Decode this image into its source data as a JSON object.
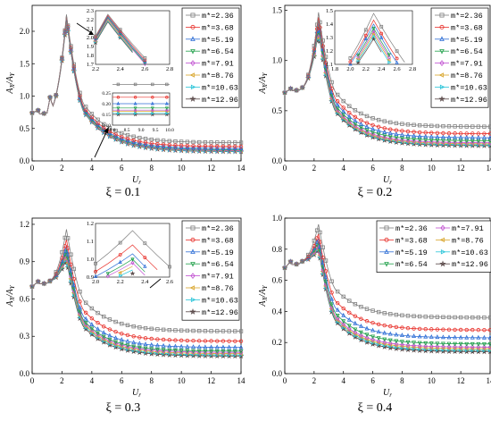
{
  "legend_names": [
    "m*=2.36",
    "m*=3.68",
    "m*=5.19",
    "m*=6.54",
    "m*=7.91",
    "m*=8.76",
    "m*=10.63",
    "m*=12.96"
  ],
  "series_colors": [
    "#808080",
    "#e8312b",
    "#2f6fd6",
    "#20a04a",
    "#c04fd0",
    "#d9a52b",
    "#28c4d8",
    "#554444"
  ],
  "series_markers": [
    "square",
    "circle",
    "triangle-up",
    "triangle-down",
    "diamond",
    "triangle-left",
    "triangle-right",
    "star"
  ],
  "chart_data": [
    {
      "type": "line",
      "caption": "ξ = 0.1",
      "xlabel": "U_r",
      "ylabel": "A_X/A_Y",
      "xlim": [
        0,
        14
      ],
      "ylim": [
        0,
        2.4
      ],
      "xticks": [
        0,
        2,
        4,
        6,
        8,
        10,
        12,
        14
      ],
      "yticks": [
        0.0,
        0.5,
        1.0,
        1.5,
        2.0
      ],
      "peak": [
        2.3,
        2.26
      ],
      "pre": [
        0.72,
        0.78
      ],
      "shoulder": [
        1.2,
        0.98
      ],
      "tail_ur14": [
        0.28,
        0.22,
        0.19,
        0.17,
        0.16,
        0.155,
        0.145,
        0.14
      ],
      "inset1": {
        "xlim": [
          2.2,
          2.8
        ],
        "ylim": [
          1.7,
          2.3
        ],
        "xticks": [
          2.2,
          2.4,
          2.6,
          2.8
        ],
        "yticks": [
          1.7,
          1.8,
          1.9,
          2.0,
          2.1,
          2.2,
          2.3
        ]
      },
      "inset2": {
        "xlim": [
          8.0,
          10.0
        ],
        "ylim": [
          0.1,
          0.25
        ],
        "xticks": [
          8.0,
          8.5,
          9.0,
          9.5,
          10.0
        ],
        "yticks": [
          0.1,
          0.15,
          0.2,
          0.25
        ]
      }
    },
    {
      "type": "line",
      "caption": "ξ = 0.2",
      "xlabel": "U_r",
      "ylabel": "A_X/A_Y",
      "xlim": [
        0,
        14
      ],
      "ylim": [
        0,
        1.55
      ],
      "xticks": [
        0,
        2,
        4,
        6,
        8,
        10,
        12,
        14
      ],
      "yticks": [
        0.0,
        0.5,
        1.0,
        1.5
      ],
      "peak": [
        2.3,
        1.48
      ],
      "pre": [
        0.7,
        0.72
      ],
      "tail_ur14": [
        0.34,
        0.27,
        0.23,
        0.2,
        0.18,
        0.17,
        0.16,
        0.15
      ],
      "peaks_alt": [
        1.48,
        1.43,
        1.4,
        1.37,
        1.35,
        1.33,
        1.31,
        1.29
      ],
      "inset1": {
        "xlim": [
          1.8,
          2.8
        ],
        "ylim": [
          1.1,
          1.5
        ],
        "xticks": [
          1.8,
          2.0,
          2.2,
          2.4,
          2.6,
          2.8
        ],
        "yticks": [
          1.1,
          1.2,
          1.3,
          1.4,
          1.5
        ]
      }
    },
    {
      "type": "line",
      "caption": "ξ = 0.3",
      "xlabel": "U_r",
      "ylabel": "A_X/A_Y",
      "xlim": [
        0,
        14
      ],
      "ylim": [
        0,
        1.25
      ],
      "xticks": [
        0,
        2,
        4,
        6,
        8,
        10,
        12,
        14
      ],
      "yticks": [
        0.0,
        0.3,
        0.6,
        0.9,
        1.2
      ],
      "peaks_alt": [
        1.16,
        1.08,
        1.03,
        1.0,
        0.98,
        0.96,
        0.94,
        0.92
      ],
      "pre": [
        0.72,
        0.74
      ],
      "tail_ur14": [
        0.34,
        0.26,
        0.21,
        0.18,
        0.17,
        0.16,
        0.15,
        0.14
      ],
      "inset1": {
        "xlim": [
          2.0,
          2.6
        ],
        "ylim": [
          0.9,
          1.2
        ],
        "xticks": [
          2.0,
          2.2,
          2.4,
          2.6
        ],
        "yticks": [
          0.9,
          1.0,
          1.1,
          1.2
        ]
      }
    },
    {
      "type": "line",
      "caption": "ξ = 0.4",
      "xlabel": "U_r",
      "ylabel": "A_X/A_Y",
      "xlim": [
        0,
        14
      ],
      "ylim": [
        0,
        1.0
      ],
      "xticks": [
        0,
        2,
        4,
        6,
        8,
        10,
        12,
        14
      ],
      "yticks": [
        0.0,
        0.2,
        0.4,
        0.6,
        0.8,
        1.0
      ],
      "peaks_alt": [
        0.96,
        0.9,
        0.87,
        0.85,
        0.83,
        0.82,
        0.81,
        0.8
      ],
      "pre": [
        0.7,
        0.72
      ],
      "tail_ur14": [
        0.36,
        0.28,
        0.23,
        0.19,
        0.17,
        0.16,
        0.15,
        0.14
      ]
    }
  ]
}
